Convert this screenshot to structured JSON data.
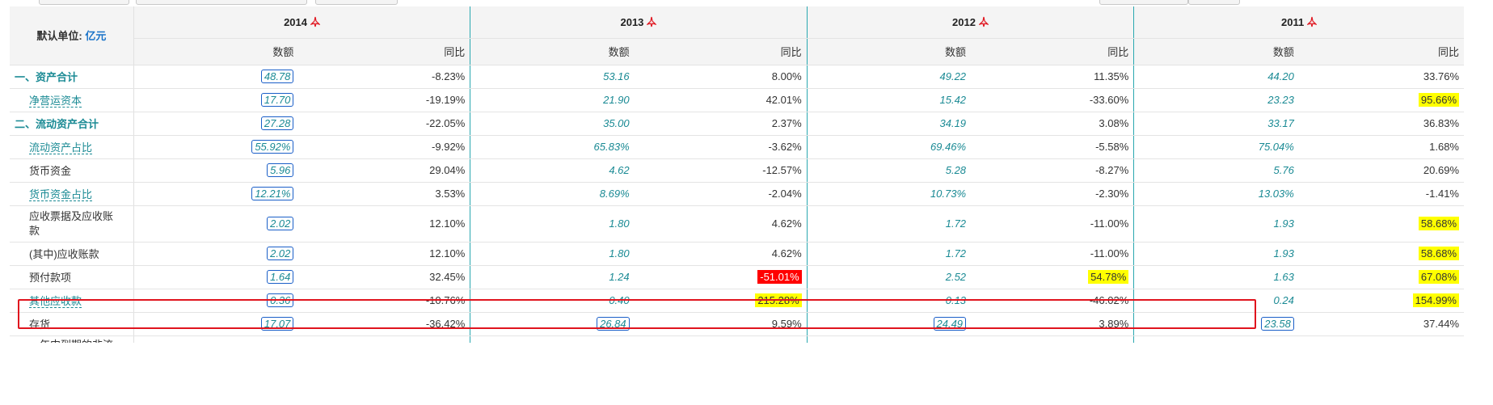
{
  "header": {
    "unit_label": "默认单位:",
    "unit_value": "亿元",
    "years": [
      "2014",
      "2013",
      "2012",
      "2011"
    ],
    "sub_value": "数额",
    "sub_yoy": "同比"
  },
  "icons": {
    "report": "pdf-icon"
  },
  "rows": [
    {
      "label": "一、资产合计",
      "style": "major",
      "vals": [
        "48.78",
        "53.16",
        "49.22",
        "44.20"
      ],
      "yoy": [
        "-8.23%",
        "8.00%",
        "11.35%",
        "33.76%"
      ],
      "hl": [
        "",
        "",
        "",
        ""
      ]
    },
    {
      "label": "净营运资本",
      "style": "link",
      "vals": [
        "17.70",
        "21.90",
        "15.42",
        "23.23"
      ],
      "yoy": [
        "-19.19%",
        "42.01%",
        "-33.60%",
        "95.66%"
      ],
      "hl": [
        "",
        "",
        "",
        "yellow"
      ]
    },
    {
      "label": "二、流动资产合计",
      "style": "major",
      "vals": [
        "27.28",
        "35.00",
        "34.19",
        "33.17"
      ],
      "yoy": [
        "-22.05%",
        "2.37%",
        "3.08%",
        "36.83%"
      ],
      "hl": [
        "",
        "",
        "",
        ""
      ]
    },
    {
      "label": "流动资产占比",
      "style": "link",
      "vals": [
        "55.92%",
        "65.83%",
        "69.46%",
        "75.04%"
      ],
      "yoy": [
        "-9.92%",
        "-3.62%",
        "-5.58%",
        "1.68%"
      ],
      "hl": [
        "",
        "",
        "",
        ""
      ]
    },
    {
      "label": "货币资金",
      "style": "plain",
      "vals": [
        "5.96",
        "4.62",
        "5.28",
        "5.76"
      ],
      "yoy": [
        "29.04%",
        "-12.57%",
        "-8.27%",
        "20.69%"
      ],
      "hl": [
        "",
        "",
        "",
        ""
      ]
    },
    {
      "label": "货币资金占比",
      "style": "link",
      "vals": [
        "12.21%",
        "8.69%",
        "10.73%",
        "13.03%"
      ],
      "yoy": [
        "3.53%",
        "-2.04%",
        "-2.30%",
        "-1.41%"
      ],
      "hl": [
        "",
        "",
        "",
        ""
      ]
    },
    {
      "label": "应收票据及应收账款",
      "style": "plain",
      "tall": true,
      "vals": [
        "2.02",
        "1.80",
        "1.72",
        "1.93"
      ],
      "yoy": [
        "12.10%",
        "4.62%",
        "-11.00%",
        "58.68%"
      ],
      "hl": [
        "",
        "",
        "",
        "yellow"
      ]
    },
    {
      "label": "(其中)应收账款",
      "style": "plain",
      "vals": [
        "2.02",
        "1.80",
        "1.72",
        "1.93"
      ],
      "yoy": [
        "12.10%",
        "4.62%",
        "-11.00%",
        "58.68%"
      ],
      "hl": [
        "",
        "",
        "",
        "yellow"
      ]
    },
    {
      "label": "预付款项",
      "style": "plain",
      "vals": [
        "1.64",
        "1.24",
        "2.52",
        "1.63"
      ],
      "yoy": [
        "32.45%",
        "-51.01%",
        "54.78%",
        "67.08%"
      ],
      "hl": [
        "",
        "red",
        "yellow",
        "yellow"
      ]
    },
    {
      "label": "其他应收款",
      "style": "link",
      "vals": [
        "0.36",
        "0.40",
        "0.13",
        "0.24"
      ],
      "yoy": [
        "-10.76%",
        "215.28%",
        "-46.02%",
        "154.99%"
      ],
      "hl": [
        "",
        "yellow",
        "",
        "yellow"
      ]
    },
    {
      "label": "存货",
      "style": "plain",
      "boxall": true,
      "vals": [
        "17.07",
        "26.84",
        "24.49",
        "23.58"
      ],
      "yoy": [
        "-36.42%",
        "9.59%",
        "3.89%",
        "37.44%"
      ],
      "hl": [
        "",
        "",
        "",
        ""
      ]
    }
  ],
  "cutoff_row": {
    "label": "一年内到期的非流"
  }
}
